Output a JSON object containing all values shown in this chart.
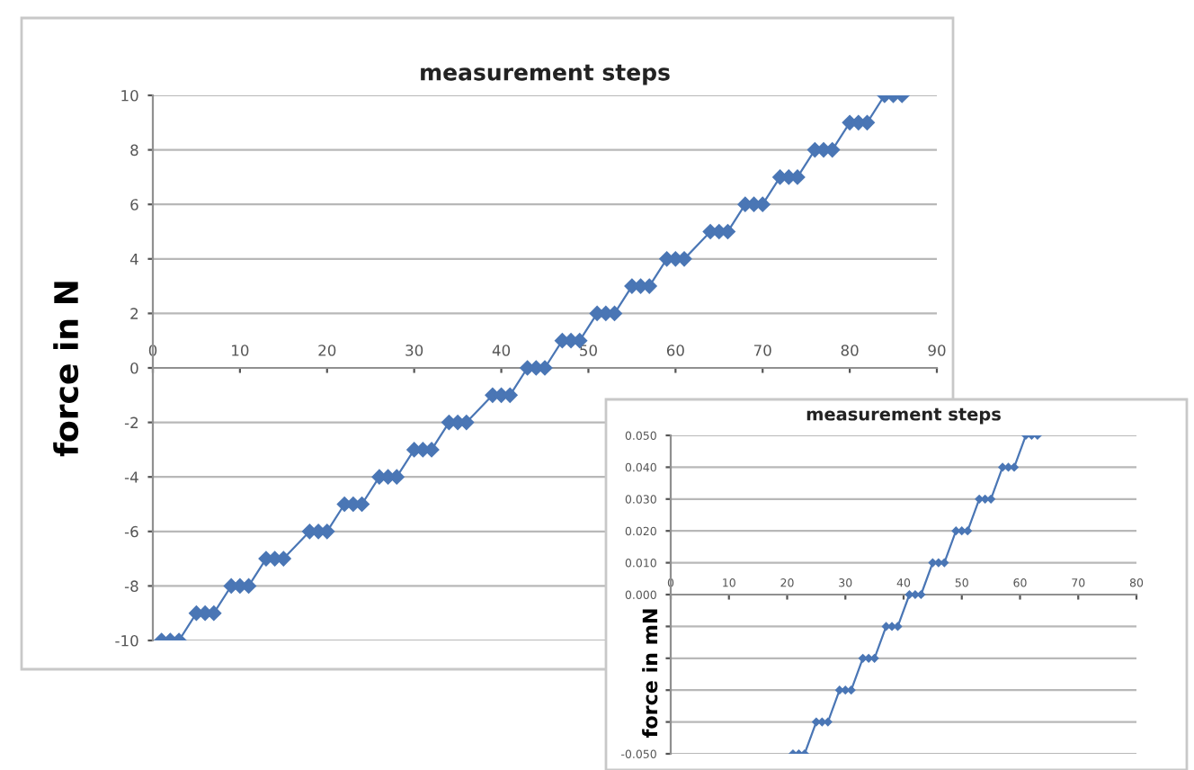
{
  "chart_data": [
    {
      "type": "line",
      "title": "measurement steps",
      "ylabel": "force in N",
      "marker": "diamond",
      "grid": "y",
      "legend": false,
      "xlim": [
        0,
        90
      ],
      "xticks": [
        0,
        10,
        20,
        30,
        40,
        50,
        60,
        70,
        80,
        90
      ],
      "ylim": [
        -10,
        10
      ],
      "yticks": [
        -10,
        -8,
        -6,
        -4,
        -2,
        0,
        2,
        4,
        6,
        8,
        10
      ],
      "series": [
        {
          "color": "#4a76b5",
          "x": [
            1,
            2,
            3,
            5,
            6,
            7,
            9,
            10,
            11,
            13,
            14,
            15,
            18,
            19,
            20,
            22,
            23,
            24,
            26,
            27,
            28,
            30,
            31,
            32,
            34,
            35,
            36,
            39,
            40,
            41,
            43,
            44,
            45,
            47,
            48,
            49,
            51,
            52,
            53,
            55,
            56,
            57,
            59,
            60,
            61,
            64,
            65,
            66,
            68,
            69,
            70,
            72,
            73,
            74,
            76,
            77,
            78,
            80,
            81,
            82,
            84,
            85,
            86
          ],
          "values": [
            -10,
            -10,
            -10,
            -9,
            -9,
            -9,
            -8,
            -8,
            -8,
            -7,
            -7,
            -7,
            -6,
            -6,
            -6,
            -5,
            -5,
            -5,
            -4,
            -4,
            -4,
            -3,
            -3,
            -3,
            -2,
            -2,
            -2,
            -1,
            -1,
            -1,
            0,
            0,
            0,
            1,
            1,
            1,
            2,
            2,
            2,
            3,
            3,
            3,
            4,
            4,
            4,
            5,
            5,
            5,
            6,
            6,
            6,
            7,
            7,
            7,
            8,
            8,
            8,
            9,
            9,
            9,
            10,
            10,
            10
          ]
        }
      ]
    },
    {
      "type": "line",
      "title": "measurement steps",
      "ylabel": "force in mN",
      "marker": "diamond",
      "grid": "y",
      "legend": false,
      "xlim": [
        0,
        80
      ],
      "xticks": [
        0,
        10,
        20,
        30,
        40,
        50,
        60,
        70,
        80
      ],
      "ylim": [
        -0.05,
        0.05
      ],
      "yticks": [
        {
          "value": -0.05,
          "label": "-0.050"
        },
        {
          "value": -0.04,
          "label": null
        },
        {
          "value": -0.03,
          "label": null
        },
        {
          "value": -0.02,
          "label": null
        },
        {
          "value": -0.01,
          "label": null
        },
        {
          "value": 0,
          "label": "0.000"
        },
        {
          "value": 0.01,
          "label": "0.010"
        },
        {
          "value": 0.02,
          "label": "0.020"
        },
        {
          "value": 0.03,
          "label": "0.030"
        },
        {
          "value": 0.04,
          "label": "0.040"
        },
        {
          "value": 0.05,
          "label": "0.050"
        }
      ],
      "series": [
        {
          "color": "#4a76b5",
          "x": [
            21,
            22,
            23,
            25,
            26,
            27,
            29,
            30,
            31,
            33,
            34,
            35,
            37,
            38,
            39,
            41,
            42,
            43,
            45,
            46,
            47,
            49,
            50,
            51,
            53,
            54,
            55,
            57,
            58,
            59,
            61,
            62,
            63
          ],
          "values": [
            -0.05,
            -0.05,
            -0.05,
            -0.04,
            -0.04,
            -0.04,
            -0.03,
            -0.03,
            -0.03,
            -0.02,
            -0.02,
            -0.02,
            -0.01,
            -0.01,
            -0.01,
            0,
            0,
            0,
            0.01,
            0.01,
            0.01,
            0.02,
            0.02,
            0.02,
            0.03,
            0.03,
            0.03,
            0.04,
            0.04,
            0.04,
            0.05,
            0.05,
            0.05
          ]
        }
      ]
    }
  ]
}
